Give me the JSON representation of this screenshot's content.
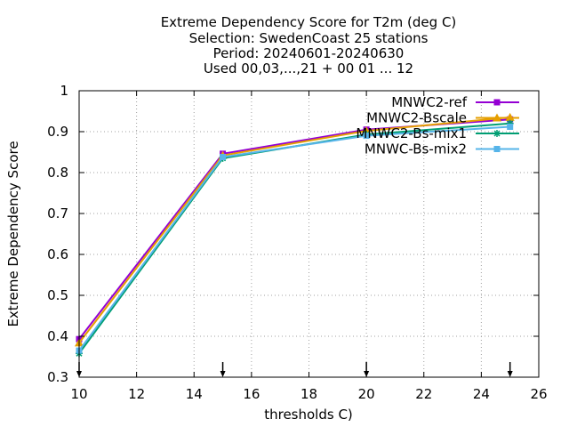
{
  "chart_data": {
    "type": "line",
    "title_lines": [
      "Extreme Dependency Score  for T2m (deg C)",
      "Selection: SwedenCoast     25 stations",
      "Period: 20240601-20240630",
      "Used 00,03,...,21 + 00 01 ... 12"
    ],
    "xlabel": "thresholds C)",
    "ylabel": "Extreme Dependency Score",
    "xlim": [
      10,
      26
    ],
    "ylim": [
      0.3,
      1
    ],
    "xticks": [
      "10",
      "12",
      "14",
      "16",
      "18",
      "20",
      "22",
      "24",
      "26"
    ],
    "yticks": [
      "0.3",
      "0.4",
      "0.5",
      "0.6",
      "0.7",
      "0.8",
      "0.9",
      "1"
    ],
    "grid": true,
    "legend_position": "top-right",
    "threshold_markers": [
      10,
      15,
      20,
      25
    ],
    "series": [
      {
        "name": "MNWC2-ref",
        "color": "#9400d3",
        "marker": "square",
        "x": [
          10,
          15,
          20,
          25
        ],
        "y": [
          0.393,
          0.846,
          0.905,
          0.93
        ]
      },
      {
        "name": "MNWC2-Bscale",
        "color": "#e69f00",
        "marker": "triangle",
        "x": [
          10,
          15,
          20,
          25
        ],
        "y": [
          0.384,
          0.842,
          0.902,
          0.935
        ]
      },
      {
        "name": "MNWC2-Bs-mix1",
        "color": "#009e73",
        "marker": "star",
        "x": [
          10,
          15,
          20,
          25
        ],
        "y": [
          0.358,
          0.835,
          0.893,
          0.92
        ]
      },
      {
        "name": "MNWC-Bs-mix2",
        "color": "#56b4e9",
        "marker": "square",
        "x": [
          10,
          15,
          20,
          25
        ],
        "y": [
          0.365,
          0.838,
          0.89,
          0.912
        ]
      }
    ]
  }
}
